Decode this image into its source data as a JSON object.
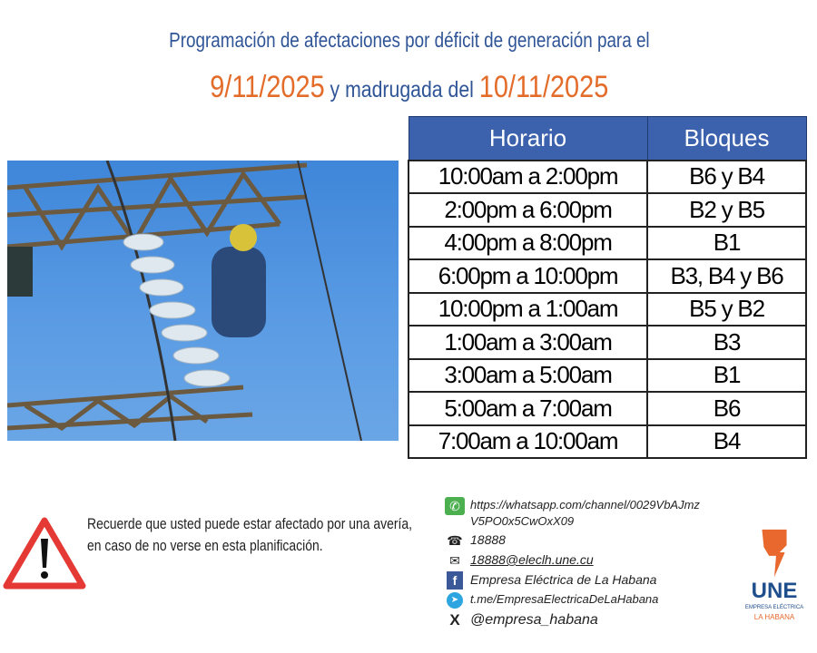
{
  "title": {
    "line1": "Programación de afectaciones por déficit de generación para el",
    "date1": "9/11/2025",
    "middle": "y madrugada del",
    "date2": "10/11/2025"
  },
  "table": {
    "headers": [
      "Horario",
      "Bloques"
    ],
    "rows": [
      [
        "10:00am a 2:00pm",
        "B6 y B4"
      ],
      [
        "2:00pm a 6:00pm",
        "B2 y B5"
      ],
      [
        "4:00pm a 8:00pm",
        "B1"
      ],
      [
        "6:00pm a 10:00pm",
        "B3, B4 y B6"
      ],
      [
        "10:00pm a 1:00am",
        "B5 y B2"
      ],
      [
        "1:00am a 3:00am",
        "B3"
      ],
      [
        "3:00am a 5:00am",
        "B1"
      ],
      [
        "5:00am a 7:00am",
        "B6"
      ],
      [
        "7:00am a 10:00am",
        "B4"
      ]
    ]
  },
  "notice": {
    "line1": "Recuerde que  usted puede estar afectado por una  avería,",
    "line2": "en  caso de  no  verse en  esta planificación."
  },
  "contacts": {
    "whatsapp1": "https://whatsapp.com/channel/0029VbAJmz",
    "whatsapp2": "V5PO0x5CwOxX09",
    "phone": "18888",
    "email": "18888@eleclh.une.cu",
    "facebook": "Empresa Eléctrica de La Habana",
    "telegram": "t.me/EmpresaElectricaDeLaHabana",
    "x": "@empresa_habana"
  },
  "logo": {
    "name": "UNE",
    "sub1": "EMPRESA ELÉCTRICA",
    "sub2": "LA HABANA"
  },
  "colors": {
    "blue": "#2f5597",
    "orange": "#e46c2a",
    "header": "#3c62ad"
  }
}
